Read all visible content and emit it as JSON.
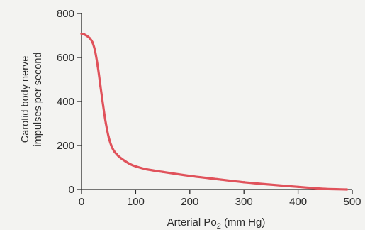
{
  "chart_data": {
    "type": "line",
    "xlabel_main": "Arterial Po",
    "xlabel_sub": "2",
    "xlabel_units": " (mm Hg)",
    "ylabel_lines": [
      "Carotid body nerve",
      "impulses per second"
    ],
    "xlim": [
      0,
      500
    ],
    "ylim": [
      0,
      800
    ],
    "x_ticks": [
      0,
      100,
      200,
      300,
      400,
      500
    ],
    "y_ticks": [
      0,
      200,
      400,
      600,
      800
    ],
    "grid": false,
    "series": [
      {
        "color": "#e0525b",
        "x": [
          0,
          5,
          10,
          15,
          20,
          25,
          30,
          35,
          40,
          45,
          50,
          55,
          60,
          65,
          70,
          80,
          90,
          100,
          120,
          150,
          200,
          250,
          300,
          350,
          400,
          450,
          490
        ],
        "y": [
          708,
          705,
          698,
          688,
          670,
          630,
          560,
          470,
          380,
          300,
          240,
          200,
          175,
          160,
          148,
          130,
          115,
          105,
          92,
          80,
          62,
          47,
          33,
          22,
          12,
          3,
          0
        ]
      }
    ]
  }
}
